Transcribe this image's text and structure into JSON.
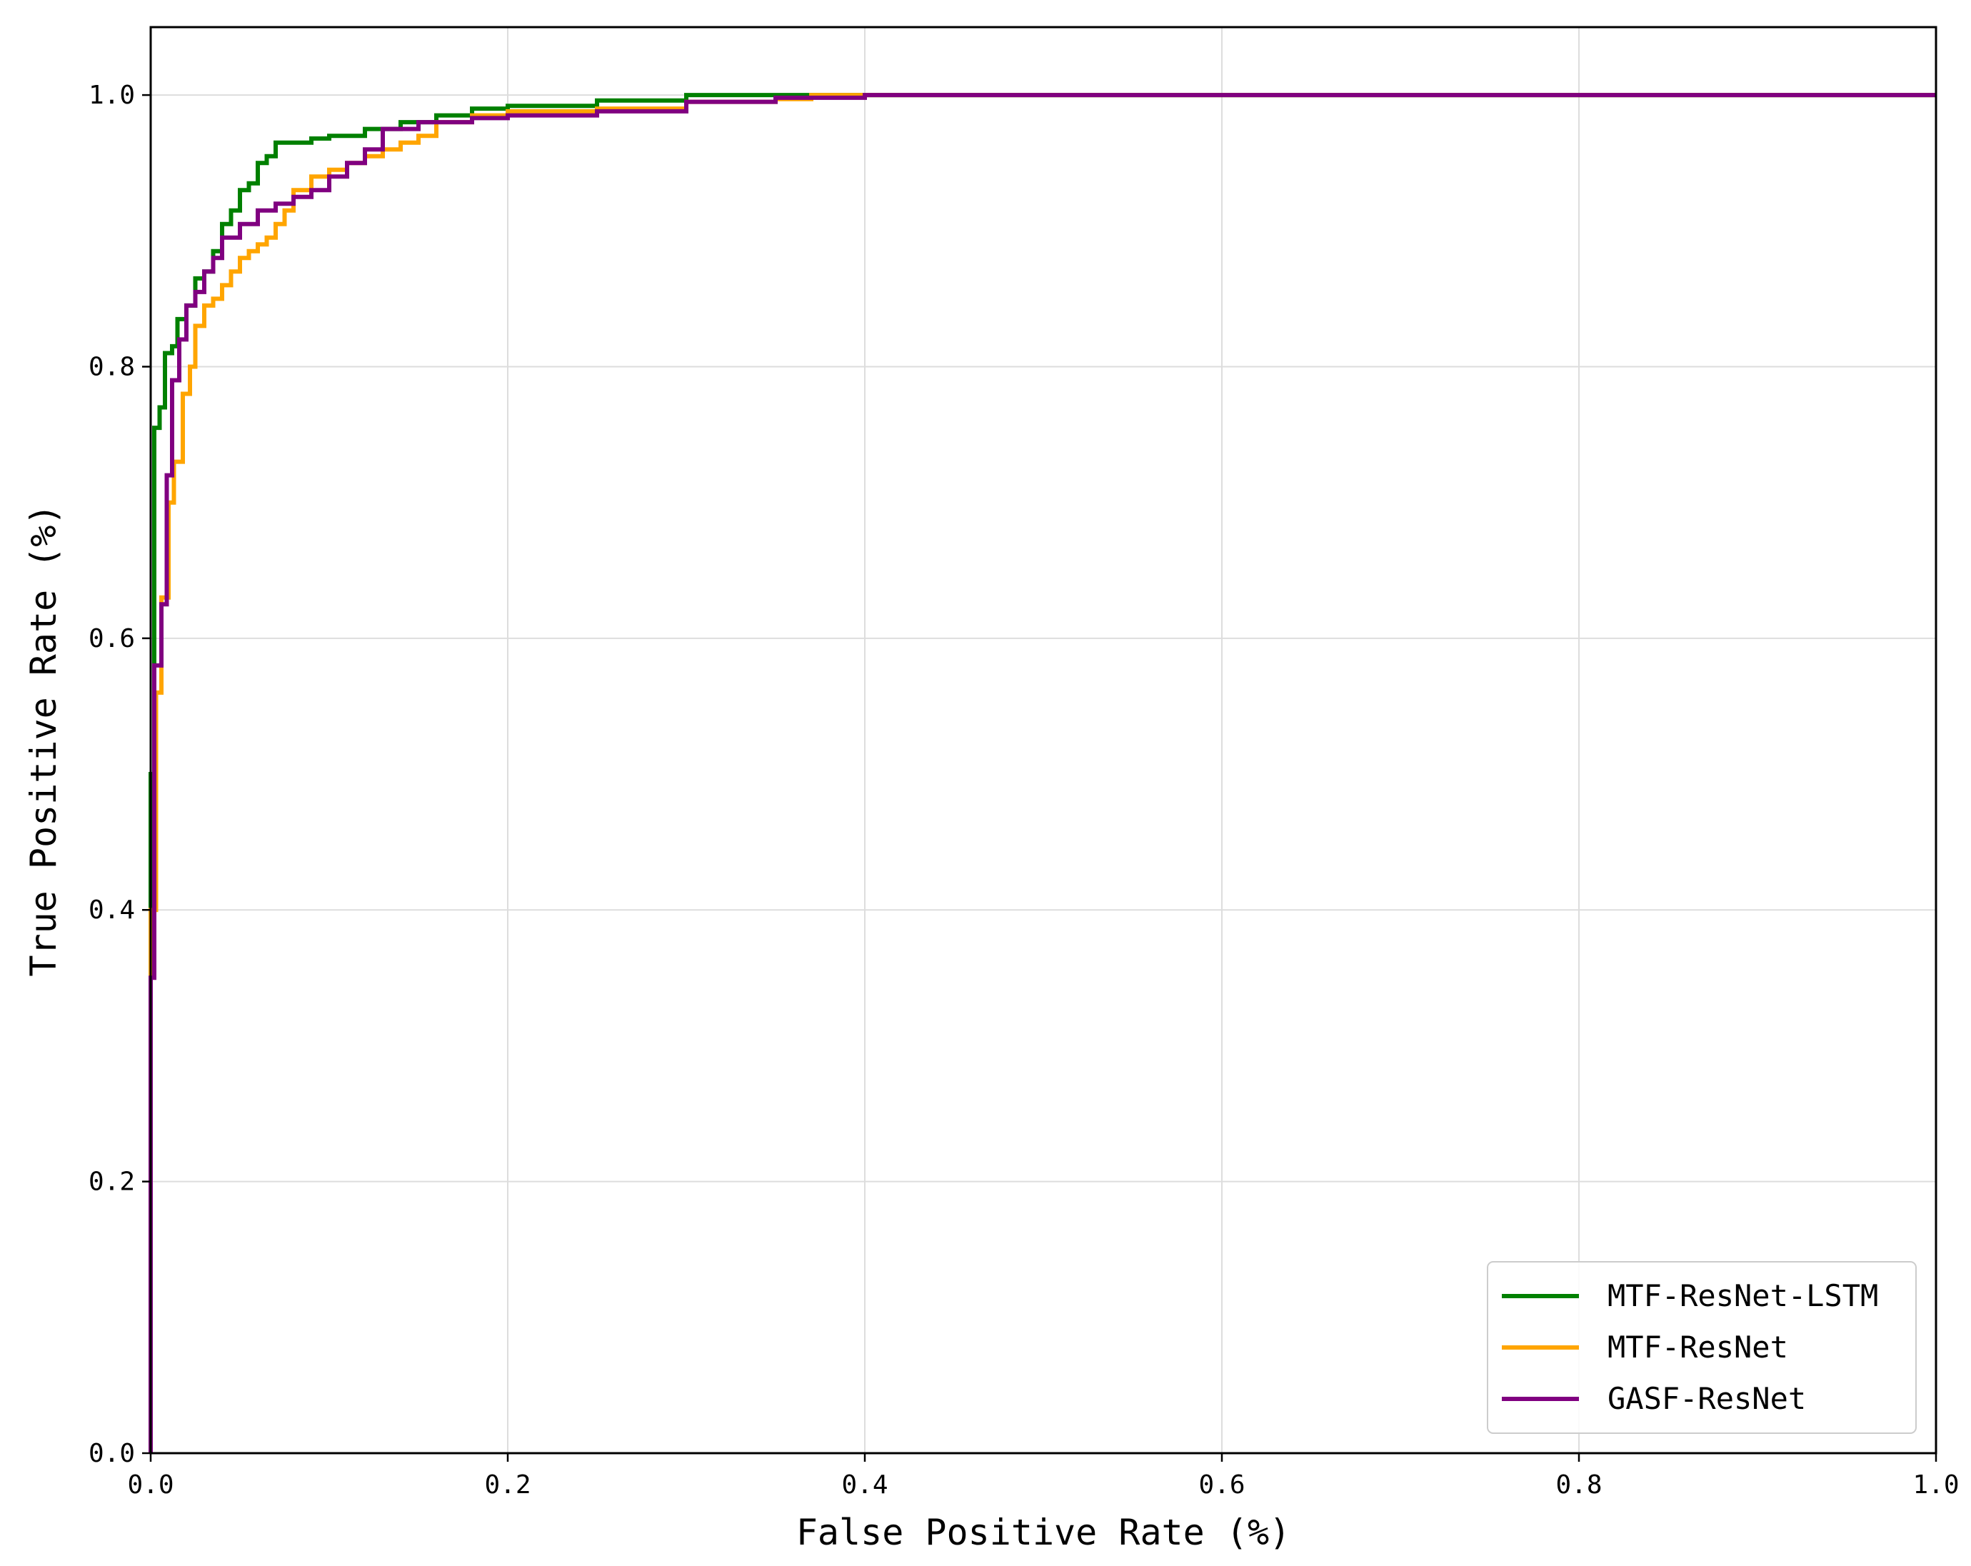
{
  "chart_data": {
    "type": "line",
    "xlabel": "False Positive Rate (%)",
    "ylabel": "True Positive Rate (%)",
    "xlim": [
      0.0,
      1.0
    ],
    "ylim": [
      0.0,
      1.05
    ],
    "grid": true,
    "legend_position": "bottom-right",
    "x_ticks": [
      "0.0",
      "0.2",
      "0.4",
      "0.6",
      "0.8",
      "1.0"
    ],
    "y_ticks": [
      "0.0",
      "0.2",
      "0.4",
      "0.6",
      "0.8",
      "1.0"
    ],
    "series": [
      {
        "name": "MTF-ResNet-LSTM",
        "color": "#008000",
        "x": [
          0.0,
          0.0,
          0.002,
          0.002,
          0.005,
          0.008,
          0.012,
          0.015,
          0.02,
          0.025,
          0.03,
          0.035,
          0.04,
          0.045,
          0.05,
          0.055,
          0.06,
          0.065,
          0.07,
          0.08,
          0.09,
          0.1,
          0.12,
          0.14,
          0.16,
          0.18,
          0.2,
          0.25,
          0.3,
          0.35,
          0.4,
          0.6,
          0.8,
          1.0
        ],
        "y": [
          0.0,
          0.5,
          0.65,
          0.755,
          0.77,
          0.81,
          0.815,
          0.835,
          0.845,
          0.865,
          0.87,
          0.885,
          0.905,
          0.915,
          0.93,
          0.935,
          0.95,
          0.955,
          0.965,
          0.965,
          0.968,
          0.97,
          0.975,
          0.98,
          0.985,
          0.99,
          0.992,
          0.996,
          1.0,
          1.0,
          1.0,
          1.0,
          1.0,
          1.0
        ]
      },
      {
        "name": "MTF-ResNet",
        "color": "#FFA500",
        "x": [
          0.0,
          0.0,
          0.003,
          0.003,
          0.006,
          0.01,
          0.013,
          0.018,
          0.022,
          0.025,
          0.03,
          0.035,
          0.04,
          0.045,
          0.05,
          0.055,
          0.06,
          0.065,
          0.07,
          0.075,
          0.08,
          0.09,
          0.1,
          0.11,
          0.12,
          0.13,
          0.14,
          0.15,
          0.16,
          0.18,
          0.2,
          0.25,
          0.3,
          0.35,
          0.37,
          0.4,
          0.6,
          0.8,
          1.0
        ],
        "y": [
          0.0,
          0.4,
          0.51,
          0.56,
          0.63,
          0.7,
          0.73,
          0.78,
          0.8,
          0.83,
          0.845,
          0.85,
          0.86,
          0.87,
          0.88,
          0.885,
          0.89,
          0.895,
          0.905,
          0.915,
          0.93,
          0.94,
          0.945,
          0.95,
          0.955,
          0.96,
          0.965,
          0.97,
          0.98,
          0.985,
          0.988,
          0.99,
          0.995,
          0.997,
          1.0,
          1.0,
          1.0,
          1.0,
          1.0
        ]
      },
      {
        "name": "GASF-ResNet",
        "color": "#800080",
        "x": [
          0.0,
          0.0,
          0.002,
          0.002,
          0.006,
          0.009,
          0.012,
          0.016,
          0.02,
          0.025,
          0.03,
          0.035,
          0.04,
          0.05,
          0.06,
          0.07,
          0.08,
          0.09,
          0.1,
          0.11,
          0.12,
          0.13,
          0.15,
          0.18,
          0.2,
          0.25,
          0.3,
          0.35,
          0.4,
          0.6,
          0.8,
          1.0
        ],
        "y": [
          0.0,
          0.35,
          0.54,
          0.58,
          0.625,
          0.72,
          0.79,
          0.82,
          0.845,
          0.855,
          0.87,
          0.88,
          0.895,
          0.905,
          0.915,
          0.92,
          0.925,
          0.93,
          0.94,
          0.95,
          0.96,
          0.975,
          0.98,
          0.983,
          0.985,
          0.988,
          0.995,
          0.998,
          1.0,
          1.0,
          1.0,
          1.0
        ]
      }
    ]
  }
}
